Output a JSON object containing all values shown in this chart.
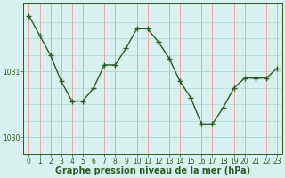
{
  "x": [
    0,
    1,
    2,
    3,
    4,
    5,
    6,
    7,
    8,
    9,
    10,
    11,
    12,
    13,
    14,
    15,
    16,
    17,
    18,
    19,
    20,
    21,
    22,
    23
  ],
  "y": [
    1031.85,
    1031.55,
    1031.25,
    1030.85,
    1030.55,
    1030.55,
    1030.75,
    1031.1,
    1031.1,
    1031.35,
    1031.65,
    1031.65,
    1031.45,
    1031.2,
    1030.85,
    1030.6,
    1030.2,
    1030.2,
    1030.45,
    1030.75,
    1030.9,
    1030.9,
    1030.9,
    1031.05
  ],
  "line_color": "#2d5a27",
  "marker": "+",
  "markersize": 4,
  "linewidth": 1.0,
  "background_color": "#d8f0ee",
  "plot_bg_color": "#d8f0ee",
  "hgrid_color": "#aad4ce",
  "vgrid_color": "#e8a0a0",
  "xlabel": "Graphe pression niveau de la mer (hPa)",
  "xlabel_color": "#2d5a27",
  "xlabel_fontsize": 7,
  "yticks": [
    1030,
    1031
  ],
  "ylim": [
    1029.75,
    1032.05
  ],
  "xlim": [
    -0.5,
    23.5
  ],
  "xticks": [
    0,
    1,
    2,
    3,
    4,
    5,
    6,
    7,
    8,
    9,
    10,
    11,
    12,
    13,
    14,
    15,
    16,
    17,
    18,
    19,
    20,
    21,
    22,
    23
  ],
  "tick_color": "#2d5a27",
  "tick_fontsize": 5.5,
  "spine_color": "#2d5a27"
}
